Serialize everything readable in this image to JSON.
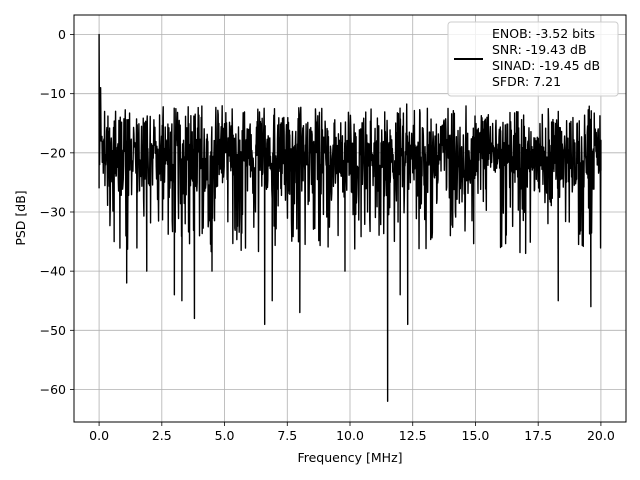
{
  "chart_data": {
    "type": "line",
    "title": "",
    "xlabel": "Frequency [MHz]",
    "ylabel": "PSD [dB]",
    "xlim": [
      -1.0,
      21.0
    ],
    "ylim": [
      -65.5,
      3.3
    ],
    "xticks": [
      0.0,
      2.5,
      5.0,
      7.5,
      10.0,
      12.5,
      15.0,
      17.5,
      20.0
    ],
    "xtick_labels": [
      "0.0",
      "2.5",
      "5.0",
      "7.5",
      "10.0",
      "12.5",
      "15.0",
      "17.5",
      "20.0"
    ],
    "yticks": [
      0,
      -10,
      -20,
      -30,
      -40,
      -50,
      -60
    ],
    "ytick_labels": [
      "0",
      "−10",
      "−20",
      "−30",
      "−40",
      "−50",
      "−60"
    ],
    "grid": true,
    "legend_position": "top-right",
    "series": [
      {
        "name": "",
        "color": "#000000",
        "legend": [
          "ENOB: -3.52 bits",
          "SNR: -19.43 dB",
          "SINAD: -19.45 dB",
          "SFDR: 7.21"
        ],
        "description": "noise-like PSD between about -12 and -30 dB across 0-20 MHz",
        "x": [
          0.0,
          0.02,
          0.04,
          0.06,
          0.1,
          0.3,
          0.6,
          1.1,
          1.9,
          3.0,
          3.3,
          3.8,
          4.5,
          5.5,
          6.6,
          6.9,
          7.6,
          8.0,
          9.0,
          9.8,
          10.7,
          11.5,
          11.6,
          12.0,
          12.3,
          13.0,
          14.0,
          15.0,
          16.0,
          17.0,
          18.3,
          18.8,
          19.6,
          20.0
        ],
        "y": [
          0.0,
          -25.0,
          -12.0,
          -9.0,
          -20.0,
          -38.0,
          -35.0,
          -42.0,
          -40.0,
          -44.0,
          -45.0,
          -48.0,
          -40.0,
          -30.0,
          -49.0,
          -45.0,
          -27.0,
          -47.0,
          -20.0,
          -40.0,
          -30.0,
          -62.0,
          -25.0,
          -44.0,
          -49.0,
          -27.0,
          -34.0,
          -18.0,
          -36.0,
          -37.0,
          -45.0,
          -21.0,
          -46.0,
          -23.0
        ]
      }
    ]
  }
}
